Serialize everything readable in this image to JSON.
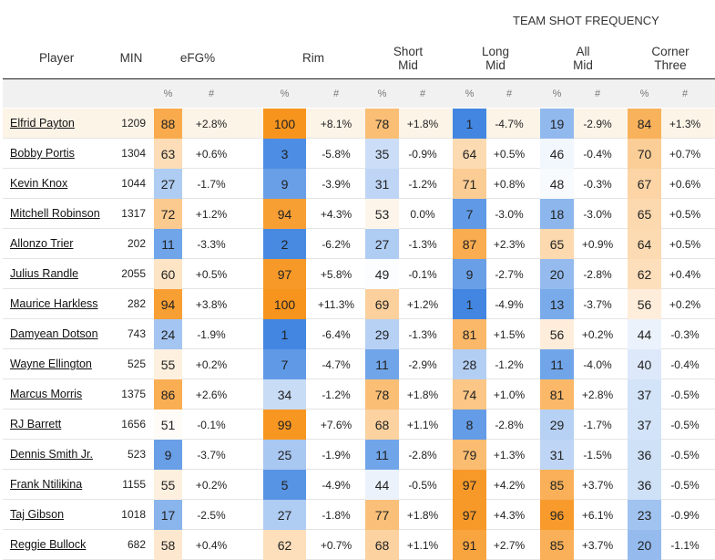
{
  "header": {
    "supertitle": "TEAM SHOT FREQUENCY",
    "columns": {
      "player": "Player",
      "min": "MIN",
      "efg": "eFG%",
      "rim": "Rim",
      "short_mid": "Short\nMid",
      "long_mid": "Long\nMid",
      "all_mid": "All\nMid",
      "corner_three": "Corner\nThree"
    },
    "sub_pct": "%",
    "sub_num": "#"
  },
  "colors": {
    "highlight_row": "#fdf4e8",
    "low": "#3b82e0",
    "mid": "#ffffff",
    "high": "#f7941d"
  },
  "rows": [
    {
      "player": "Elfrid Payton",
      "min": "1209",
      "efg": "88",
      "efg_d": "+2.8%",
      "rim": "100",
      "rim_d": "+8.1%",
      "sm": "78",
      "sm_d": "+1.8%",
      "lm": "1",
      "lm_d": "-4.7%",
      "am": "19",
      "am_d": "-2.9%",
      "ct": "84",
      "ct_d": "+1.3%",
      "highlight": true
    },
    {
      "player": "Bobby Portis",
      "min": "1304",
      "efg": "63",
      "efg_d": "+0.6%",
      "rim": "3",
      "rim_d": "-5.8%",
      "sm": "35",
      "sm_d": "-0.9%",
      "lm": "64",
      "lm_d": "+0.5%",
      "am": "46",
      "am_d": "-0.4%",
      "ct": "70",
      "ct_d": "+0.7%"
    },
    {
      "player": "Kevin Knox",
      "min": "1044",
      "efg": "27",
      "efg_d": "-1.7%",
      "rim": "9",
      "rim_d": "-3.9%",
      "sm": "31",
      "sm_d": "-1.2%",
      "lm": "71",
      "lm_d": "+0.8%",
      "am": "48",
      "am_d": "-0.3%",
      "ct": "67",
      "ct_d": "+0.6%"
    },
    {
      "player": "Mitchell Robinson",
      "min": "1317",
      "efg": "72",
      "efg_d": "+1.2%",
      "rim": "94",
      "rim_d": "+4.3%",
      "sm": "53",
      "sm_d": "0.0%",
      "lm": "7",
      "lm_d": "-3.0%",
      "am": "18",
      "am_d": "-3.0%",
      "ct": "65",
      "ct_d": "+0.5%"
    },
    {
      "player": "Allonzo Trier",
      "min": "202",
      "efg": "11",
      "efg_d": "-3.3%",
      "rim": "2",
      "rim_d": "-6.2%",
      "sm": "27",
      "sm_d": "-1.3%",
      "lm": "87",
      "lm_d": "+2.3%",
      "am": "65",
      "am_d": "+0.9%",
      "ct": "64",
      "ct_d": "+0.5%"
    },
    {
      "player": "Julius Randle",
      "min": "2055",
      "efg": "60",
      "efg_d": "+0.5%",
      "rim": "97",
      "rim_d": "+5.8%",
      "sm": "49",
      "sm_d": "-0.1%",
      "lm": "9",
      "lm_d": "-2.7%",
      "am": "20",
      "am_d": "-2.8%",
      "ct": "62",
      "ct_d": "+0.4%"
    },
    {
      "player": "Maurice Harkless",
      "min": "282",
      "efg": "94",
      "efg_d": "+3.8%",
      "rim": "100",
      "rim_d": "+11.3%",
      "sm": "69",
      "sm_d": "+1.2%",
      "lm": "1",
      "lm_d": "-4.9%",
      "am": "13",
      "am_d": "-3.7%",
      "ct": "56",
      "ct_d": "+0.2%"
    },
    {
      "player": "Damyean Dotson",
      "min": "743",
      "efg": "24",
      "efg_d": "-1.9%",
      "rim": "1",
      "rim_d": "-6.4%",
      "sm": "29",
      "sm_d": "-1.3%",
      "lm": "81",
      "lm_d": "+1.5%",
      "am": "56",
      "am_d": "+0.2%",
      "ct": "44",
      "ct_d": "-0.3%"
    },
    {
      "player": "Wayne Ellington",
      "min": "525",
      "efg": "55",
      "efg_d": "+0.2%",
      "rim": "7",
      "rim_d": "-4.7%",
      "sm": "11",
      "sm_d": "-2.9%",
      "lm": "28",
      "lm_d": "-1.2%",
      "am": "11",
      "am_d": "-4.0%",
      "ct": "40",
      "ct_d": "-0.4%"
    },
    {
      "player": "Marcus Morris",
      "min": "1375",
      "efg": "86",
      "efg_d": "+2.6%",
      "rim": "34",
      "rim_d": "-1.2%",
      "sm": "78",
      "sm_d": "+1.8%",
      "lm": "74",
      "lm_d": "+1.0%",
      "am": "81",
      "am_d": "+2.8%",
      "ct": "37",
      "ct_d": "-0.5%"
    },
    {
      "player": "RJ Barrett",
      "min": "1656",
      "efg": "51",
      "efg_d": "-0.1%",
      "rim": "99",
      "rim_d": "+7.6%",
      "sm": "68",
      "sm_d": "+1.1%",
      "lm": "8",
      "lm_d": "-2.8%",
      "am": "29",
      "am_d": "-1.7%",
      "ct": "37",
      "ct_d": "-0.5%"
    },
    {
      "player": "Dennis Smith Jr.",
      "min": "523",
      "efg": "9",
      "efg_d": "-3.7%",
      "rim": "25",
      "rim_d": "-1.9%",
      "sm": "11",
      "sm_d": "-2.8%",
      "lm": "79",
      "lm_d": "+1.3%",
      "am": "31",
      "am_d": "-1.5%",
      "ct": "36",
      "ct_d": "-0.5%"
    },
    {
      "player": "Frank Ntilikina",
      "min": "1155",
      "efg": "55",
      "efg_d": "+0.2%",
      "rim": "5",
      "rim_d": "-4.9%",
      "sm": "44",
      "sm_d": "-0.5%",
      "lm": "97",
      "lm_d": "+4.2%",
      "am": "85",
      "am_d": "+3.7%",
      "ct": "36",
      "ct_d": "-0.5%"
    },
    {
      "player": "Taj Gibson",
      "min": "1018",
      "efg": "17",
      "efg_d": "-2.5%",
      "rim": "27",
      "rim_d": "-1.8%",
      "sm": "77",
      "sm_d": "+1.8%",
      "lm": "97",
      "lm_d": "+4.3%",
      "am": "96",
      "am_d": "+6.1%",
      "ct": "23",
      "ct_d": "-0.9%"
    },
    {
      "player": "Reggie Bullock",
      "min": "682",
      "efg": "58",
      "efg_d": "+0.4%",
      "rim": "62",
      "rim_d": "+0.7%",
      "sm": "68",
      "sm_d": "+1.1%",
      "lm": "91",
      "lm_d": "+2.7%",
      "am": "85",
      "am_d": "+3.7%",
      "ct": "20",
      "ct_d": "-1.1%"
    }
  ]
}
